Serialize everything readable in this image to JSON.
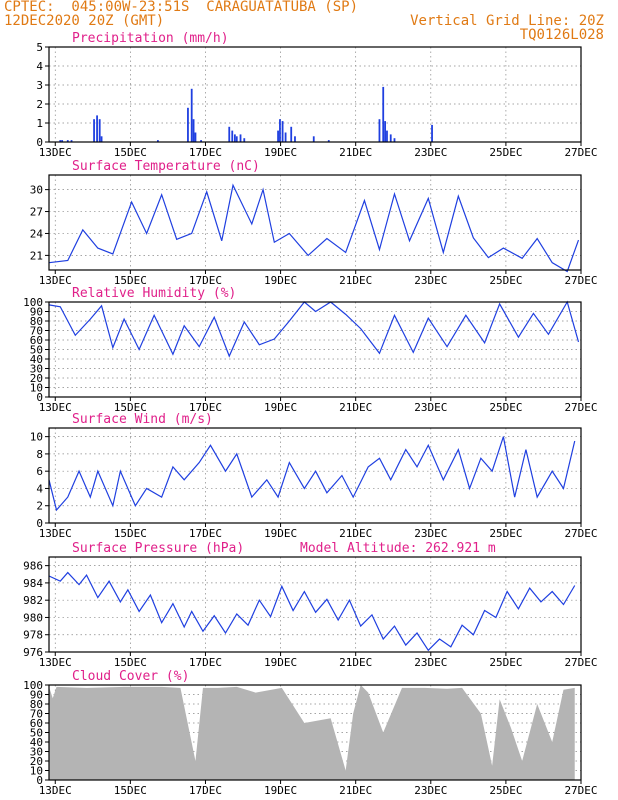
{
  "header": {
    "left_line1": "CPTEC:  045:00W-23:51S  CARAGUATATUBA (SP)",
    "left_line2": "12DEC2020 20Z (GMT)",
    "right_line1": "Vertical Grid Line: 20Z",
    "right_line2": "TQ0126L028"
  },
  "colors": {
    "header": "#e07a14",
    "title": "#e0208a",
    "series": "#1f3fe0",
    "cloud": "#b4b4b4",
    "grid": "#888888"
  },
  "time_axis": {
    "start": "12DEC2020 20Z",
    "end": "27DEC2020 00Z",
    "tick_labels": [
      "13DEC",
      "15DEC",
      "17DEC",
      "19DEC",
      "21DEC",
      "23DEC",
      "25DEC",
      "27DEC"
    ]
  },
  "chart_data": [
    {
      "type": "bar",
      "title": "Precipitation (mm/h)",
      "ylim": [
        0,
        5
      ],
      "yticks": [
        0,
        1,
        2,
        3,
        4,
        5
      ],
      "t_days": [
        0.3,
        0.35,
        0.5,
        0.6,
        1.2,
        1.28,
        1.35,
        1.4,
        2.9,
        3.7,
        3.8,
        3.85,
        3.9,
        4.05,
        4.8,
        4.88,
        4.95,
        5.0,
        5.1,
        5.2,
        6.1,
        6.15,
        6.22,
        6.3,
        6.45,
        6.55,
        7.05,
        7.45,
        8.8,
        8.9,
        8.95,
        9.0,
        9.1,
        9.2,
        10.2
      ],
      "values": [
        0.1,
        0.1,
        0.1,
        0.1,
        1.2,
        1.4,
        1.2,
        0.3,
        0.1,
        1.8,
        2.8,
        1.2,
        0.5,
        0.1,
        0.8,
        0.6,
        0.4,
        0.3,
        0.4,
        0.2,
        0.6,
        1.2,
        1.1,
        0.5,
        0.8,
        0.3,
        0.3,
        0.1,
        1.2,
        2.9,
        1.1,
        0.6,
        0.4,
        0.2,
        0.9
      ]
    },
    {
      "type": "line",
      "title": "Surface Temperature (nC)",
      "ylim": [
        19,
        32
      ],
      "yticks": [
        21,
        24,
        27,
        30
      ],
      "t_days": [
        0.0,
        0.5,
        0.9,
        1.3,
        1.7,
        2.2,
        2.6,
        3.0,
        3.4,
        3.8,
        4.2,
        4.6,
        4.9,
        5.4,
        5.7,
        6.0,
        6.4,
        6.9,
        7.4,
        7.9,
        8.4,
        8.8,
        9.2,
        9.6,
        10.1,
        10.5,
        10.9,
        11.3,
        11.7,
        12.1,
        12.6,
        13.0,
        13.4,
        13.8,
        14.1
      ],
      "values": [
        20.0,
        20.3,
        24.5,
        22.0,
        21.2,
        28.3,
        24.0,
        29.3,
        23.2,
        24.0,
        29.7,
        23.0,
        30.6,
        25.3,
        30.0,
        22.8,
        24.0,
        21.0,
        23.3,
        21.4,
        28.5,
        21.8,
        29.4,
        23.0,
        28.8,
        21.4,
        29.1,
        23.4,
        20.7,
        22.0,
        20.6,
        23.3,
        20.0,
        18.8,
        23.1
      ]
    },
    {
      "type": "line",
      "title": "Relative Humidity (%)",
      "ylim": [
        0,
        100
      ],
      "yticks": [
        0,
        10,
        20,
        30,
        40,
        50,
        60,
        70,
        80,
        90,
        100
      ],
      "t_days": [
        0.0,
        0.3,
        0.7,
        1.1,
        1.4,
        1.7,
        2.0,
        2.4,
        2.8,
        3.3,
        3.6,
        4.0,
        4.4,
        4.8,
        5.2,
        5.6,
        6.0,
        6.4,
        6.8,
        7.1,
        7.5,
        7.9,
        8.3,
        8.8,
        9.2,
        9.7,
        10.1,
        10.6,
        11.1,
        11.6,
        12.0,
        12.5,
        12.9,
        13.3,
        13.8,
        14.1
      ],
      "values": [
        97,
        95,
        65,
        82,
        96,
        52,
        82,
        50,
        86,
        45,
        75,
        53,
        84,
        43,
        79,
        55,
        61,
        80,
        100,
        90,
        100,
        87,
        72,
        46,
        86,
        47,
        83,
        53,
        86,
        57,
        98,
        63,
        88,
        66,
        100,
        58
      ]
    },
    {
      "type": "line",
      "title": "Surface Wind (m/s)",
      "ylim": [
        0,
        11
      ],
      "yticks": [
        0,
        2,
        4,
        6,
        8,
        10
      ],
      "t_days": [
        0.0,
        0.2,
        0.5,
        0.8,
        1.1,
        1.3,
        1.7,
        1.9,
        2.3,
        2.6,
        3.0,
        3.3,
        3.6,
        4.0,
        4.3,
        4.7,
        5.0,
        5.4,
        5.8,
        6.1,
        6.4,
        6.8,
        7.1,
        7.4,
        7.8,
        8.1,
        8.5,
        8.8,
        9.1,
        9.5,
        9.8,
        10.1,
        10.5,
        10.9,
        11.2,
        11.5,
        11.8,
        12.1,
        12.4,
        12.7,
        13.0,
        13.4,
        13.7,
        14.0
      ],
      "values": [
        5.0,
        1.5,
        3.0,
        6.0,
        3.0,
        6.0,
        2.0,
        6.0,
        2.0,
        4.0,
        3.0,
        6.5,
        5.0,
        7.0,
        9.0,
        6.0,
        8.0,
        3.0,
        5.0,
        3.0,
        7.0,
        4.0,
        6.0,
        3.5,
        5.5,
        3.0,
        6.5,
        7.5,
        5.0,
        8.5,
        6.5,
        9.0,
        5.0,
        8.5,
        4.0,
        7.5,
        6.0,
        10.0,
        3.0,
        8.5,
        3.0,
        6.0,
        4.0,
        9.5
      ]
    },
    {
      "type": "line",
      "title": "Surface Pressure (hPa)",
      "subtitle": "Model Altitude: 262.921 m",
      "ylim": [
        976,
        987
      ],
      "yticks": [
        976,
        978,
        980,
        982,
        984,
        986
      ],
      "t_days": [
        0.0,
        0.3,
        0.5,
        0.8,
        1.0,
        1.3,
        1.6,
        1.9,
        2.1,
        2.4,
        2.7,
        3.0,
        3.3,
        3.6,
        3.8,
        4.1,
        4.4,
        4.7,
        5.0,
        5.3,
        5.6,
        5.9,
        6.2,
        6.5,
        6.8,
        7.1,
        7.4,
        7.7,
        8.0,
        8.3,
        8.6,
        8.9,
        9.2,
        9.5,
        9.8,
        10.1,
        10.4,
        10.7,
        11.0,
        11.3,
        11.6,
        11.9,
        12.2,
        12.5,
        12.8,
        13.1,
        13.4,
        13.7,
        14.0
      ],
      "values": [
        984.8,
        984.2,
        985.2,
        983.8,
        984.9,
        982.3,
        984.2,
        981.8,
        983.2,
        980.7,
        982.6,
        979.4,
        981.6,
        978.9,
        980.7,
        978.4,
        980.2,
        978.2,
        980.4,
        979.1,
        982.0,
        980.1,
        983.6,
        980.8,
        983.0,
        980.6,
        982.1,
        979.7,
        982.0,
        979.0,
        980.3,
        977.5,
        979.0,
        976.8,
        978.2,
        976.2,
        977.5,
        976.6,
        979.1,
        978.0,
        980.8,
        980.0,
        983.0,
        981.0,
        983.4,
        981.8,
        983.0,
        981.5,
        983.7
      ]
    },
    {
      "type": "area",
      "title": "Cloud Cover (%)",
      "ylim": [
        0,
        100
      ],
      "yticks": [
        0,
        10,
        20,
        30,
        40,
        50,
        60,
        70,
        80,
        90,
        100
      ],
      "t_days": [
        0.0,
        0.1,
        0.2,
        1.0,
        2.0,
        3.0,
        3.5,
        3.9,
        4.1,
        4.5,
        5.0,
        5.5,
        6.2,
        6.8,
        7.5,
        7.9,
        8.1,
        8.3,
        8.5,
        8.9,
        9.4,
        10.0,
        10.6,
        11.0,
        11.5,
        11.8,
        12.0,
        12.3,
        12.6,
        13.0,
        13.4,
        13.7,
        14.0
      ],
      "values": [
        98,
        86,
        98,
        97,
        98,
        98,
        97,
        20,
        97,
        97,
        98,
        92,
        97,
        60,
        65,
        10,
        70,
        100,
        92,
        50,
        97,
        97,
        96,
        97,
        70,
        15,
        85,
        55,
        20,
        80,
        40,
        95,
        97
      ]
    }
  ]
}
